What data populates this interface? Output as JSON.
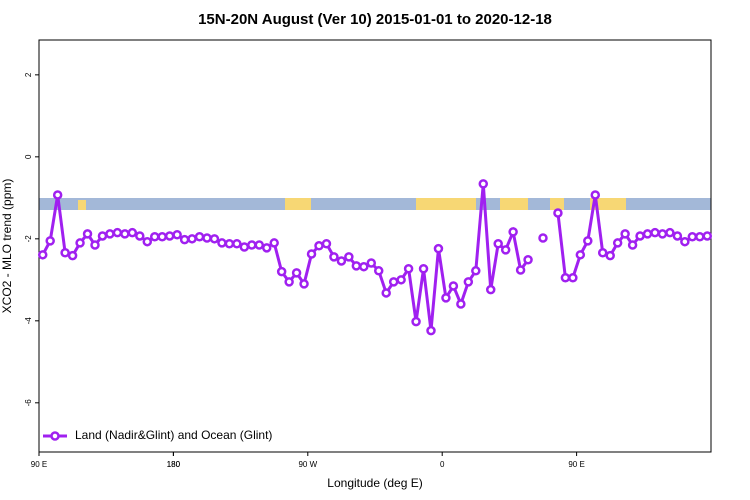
{
  "chart_data": {
    "type": "line",
    "title": "15N-20N August (Ver 10)   2015-01-01 to 2020-12-18",
    "xlabel": "Longitude (deg E)",
    "ylabel": "XCO2 - MLO trend (ppm)",
    "xlim": [
      90,
      540
    ],
    "ylim": [
      -7.2,
      2.85
    ],
    "xticks": [
      {
        "value": 90,
        "label": "90 E"
      },
      180,
      {
        "value": 270,
        "label": "90 W"
      },
      {
        "value": 360,
        "label": "0"
      },
      {
        "value": 450,
        "label": "90 E"
      },
      180
    ],
    "yticks": [
      2,
      0,
      -2,
      -4,
      -6
    ],
    "legend": "bottomleft",
    "x": [
      92.5,
      97.5,
      102.5,
      107.5,
      112.5,
      117.5,
      122.5,
      127.5,
      132.5,
      137.5,
      142.5,
      147.5,
      152.5,
      157.5,
      162.5,
      167.5,
      172.5,
      177.5,
      182.5,
      187.5,
      192.5,
      197.5,
      202.5,
      207.5,
      212.5,
      217.5,
      222.5,
      227.5,
      232.5,
      237.5,
      242.5,
      247.5,
      252.5,
      257.5,
      262.5,
      267.5,
      272.5,
      277.5,
      282.5,
      287.5,
      292.5,
      297.5,
      302.5,
      307.5,
      312.5,
      317.5,
      322.5,
      327.5,
      332.5,
      337.5,
      342.5,
      347.5,
      352.5,
      357.5,
      362.5,
      367.5,
      372.5,
      377.5,
      382.5,
      387.5,
      392.5,
      397.5,
      402.5,
      407.5,
      412.5,
      417.5,
      422.5,
      427.5,
      432.5,
      437.5,
      442.5,
      447.5,
      452.5,
      457.5,
      462.5,
      467.5,
      472.5,
      477.5,
      482.5,
      487.5,
      492.5,
      497.5,
      502.5,
      507.5,
      512.5,
      517.5,
      522.5,
      527.5,
      532.5,
      537.5
    ],
    "series": [
      {
        "name": "Land (Nadir&Glint) and Ocean (Glint)",
        "color": "#a020f0",
        "values": [
          -2.39,
          -2.05,
          -0.93,
          -2.34,
          -2.41,
          -2.1,
          -1.88,
          -2.15,
          -1.93,
          -1.88,
          -1.85,
          -1.88,
          -1.85,
          -1.93,
          -2.07,
          -1.95,
          -1.95,
          -1.93,
          -1.9,
          -2.02,
          -2.0,
          -1.95,
          -1.98,
          -2.0,
          -2.1,
          -2.12,
          -2.12,
          -2.2,
          -2.15,
          -2.15,
          -2.22,
          -2.1,
          -2.8,
          -3.05,
          -2.83,
          -3.1,
          -2.37,
          -2.17,
          -2.12,
          -2.44,
          -2.54,
          -2.44,
          -2.66,
          -2.68,
          -2.59,
          -2.78,
          -3.32,
          -3.05,
          -3.0,
          -2.73,
          -4.02,
          -2.73,
          -4.24,
          -2.24,
          -3.44,
          -3.15,
          -3.59,
          -3.05,
          -2.78,
          -0.66,
          -3.24,
          -2.12,
          -2.27,
          -1.83,
          -2.76,
          -2.51,
          null,
          -1.98,
          null,
          -1.37,
          -2.95,
          -2.95,
          -2.39,
          -2.05,
          -0.93,
          -2.34,
          -2.41,
          -2.1,
          -1.88,
          -2.15,
          -1.93,
          -1.88,
          -1.85,
          -1.88,
          -1.85,
          -1.93,
          -2.07,
          -1.95,
          -1.95,
          -1.93
        ]
      }
    ]
  }
}
